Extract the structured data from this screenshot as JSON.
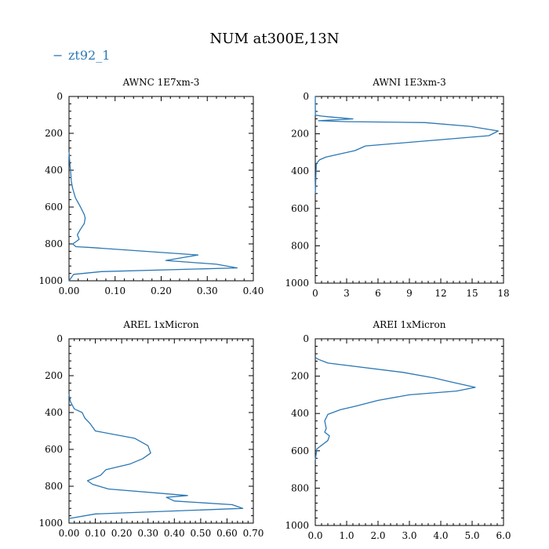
{
  "title": "NUM at300E,13N",
  "legend": {
    "dash": "−",
    "label": "zt92_1",
    "color": "#2a77b4"
  },
  "chart_data": [
    {
      "type": "line",
      "title": "AWNC  1E7xm-3",
      "xlim": [
        0,
        0.4
      ],
      "ylim": [
        1000,
        0
      ],
      "xticks": [
        0,
        0.1,
        0.2,
        0.3,
        0.4
      ],
      "xtick_labels": [
        "0.00",
        "0.10",
        "0.20",
        "0.30",
        "0.40"
      ],
      "yticks": [
        0,
        200,
        400,
        600,
        800,
        1000
      ],
      "ytick_labels": [
        "0",
        "200",
        "400",
        "600",
        "800",
        "1000"
      ],
      "series": [
        {
          "name": "zt92_1",
          "x": [
            0.0,
            0.002,
            0.004,
            0.005,
            0.008,
            0.014,
            0.025,
            0.033,
            0.035,
            0.033,
            0.025,
            0.018,
            0.022,
            0.014,
            0.008,
            0.015,
            0.05,
            0.28,
            0.21,
            0.32,
            0.365,
            0.07,
            0.01,
            0.0
          ],
          "y": [
            300,
            370,
            420,
            460,
            500,
            550,
            600,
            640,
            660,
            690,
            720,
            750,
            775,
            790,
            800,
            815,
            820,
            860,
            890,
            910,
            930,
            950,
            965,
            1000
          ]
        }
      ]
    },
    {
      "type": "line",
      "title": "AWNI  1E3xm-3",
      "xlim": [
        0,
        18
      ],
      "ylim": [
        1000,
        0
      ],
      "xticks": [
        0,
        3,
        6,
        9,
        12,
        15,
        18
      ],
      "xtick_labels": [
        "0",
        "3",
        "6",
        "9",
        "12",
        "15",
        "18"
      ],
      "yticks": [
        0,
        200,
        400,
        600,
        800,
        1000
      ],
      "ytick_labels": [
        "0",
        "200",
        "400",
        "600",
        "800",
        "1000"
      ],
      "series": [
        {
          "name": "zt92_1",
          "x": [
            0.0,
            0.01,
            0.6,
            1.5,
            3.6,
            0.3,
            3.0,
            10.5,
            14.8,
            17.5,
            16.6,
            4.8,
            3.8,
            2.2,
            1.0,
            0.4,
            0.1,
            0.0
          ],
          "y": [
            0,
            100,
            105,
            110,
            120,
            130,
            135,
            140,
            160,
            185,
            210,
            265,
            290,
            310,
            325,
            340,
            360,
            520
          ]
        }
      ]
    },
    {
      "type": "line",
      "title": "AREL  1xMicron",
      "xlim": [
        0,
        0.7
      ],
      "ylim": [
        1000,
        0
      ],
      "xticks": [
        0,
        0.1,
        0.2,
        0.3,
        0.4,
        0.5,
        0.6,
        0.7
      ],
      "xtick_labels": [
        "0.00",
        "0.10",
        "0.20",
        "0.30",
        "0.40",
        "0.50",
        "0.60",
        "0.70"
      ],
      "yticks": [
        0,
        200,
        400,
        600,
        800,
        1000
      ],
      "ytick_labels": [
        "0",
        "200",
        "400",
        "600",
        "800",
        "1000"
      ],
      "series": [
        {
          "name": "zt92_1",
          "x": [
            0.0,
            0.005,
            0.02,
            0.05,
            0.06,
            0.08,
            0.1,
            0.25,
            0.3,
            0.31,
            0.28,
            0.23,
            0.14,
            0.12,
            0.07,
            0.09,
            0.15,
            0.45,
            0.37,
            0.4,
            0.62,
            0.66,
            0.1,
            0.0
          ],
          "y": [
            300,
            340,
            380,
            400,
            430,
            460,
            500,
            540,
            580,
            620,
            650,
            680,
            710,
            740,
            770,
            790,
            815,
            850,
            860,
            880,
            900,
            920,
            950,
            975
          ]
        }
      ]
    },
    {
      "type": "line",
      "title": "AREI  1xMicron",
      "xlim": [
        0,
        6.0
      ],
      "ylim": [
        1000,
        0
      ],
      "xticks": [
        0,
        1,
        2,
        3,
        4,
        5,
        6
      ],
      "xtick_labels": [
        "0.0",
        "1.0",
        "2.0",
        "3.0",
        "4.0",
        "5.0",
        "6.0"
      ],
      "yticks": [
        0,
        200,
        400,
        600,
        800,
        1000
      ],
      "ytick_labels": [
        "0",
        "200",
        "400",
        "600",
        "800",
        "1000"
      ],
      "series": [
        {
          "name": "zt92_1",
          "x": [
            0.0,
            0.1,
            0.4,
            2.8,
            3.8,
            4.3,
            5.1,
            4.5,
            3.0,
            2.0,
            1.3,
            0.8,
            0.4,
            0.3,
            0.35,
            0.3,
            0.45,
            0.4,
            0.05,
            0.0
          ],
          "y": [
            100,
            110,
            130,
            180,
            210,
            230,
            260,
            280,
            300,
            330,
            360,
            380,
            405,
            440,
            480,
            500,
            520,
            545,
            590,
            650
          ]
        }
      ]
    }
  ]
}
